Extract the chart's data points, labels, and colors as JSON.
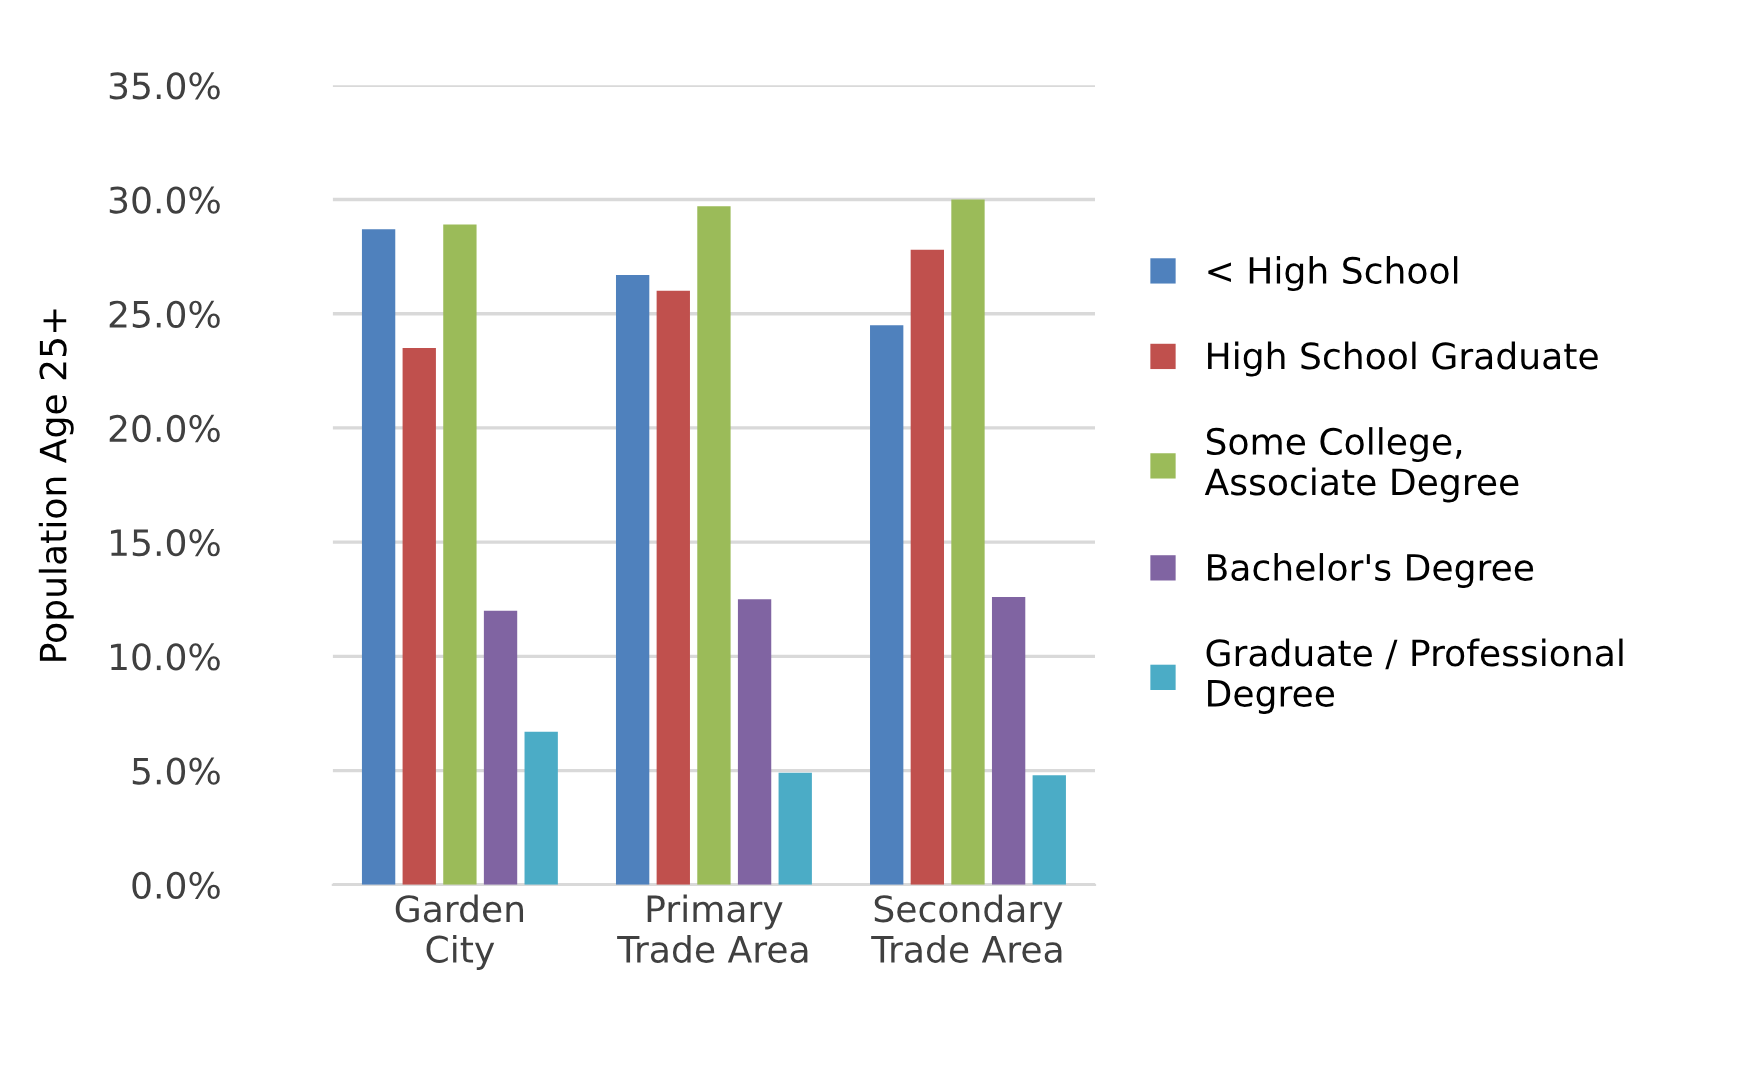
{
  "chart_data": {
    "type": "bar",
    "ylabel": "Population Age 25+",
    "categories": [
      "Garden\nCity",
      "Primary\nTrade Area",
      "Secondary\nTrade Area"
    ],
    "series": [
      {
        "name": "< High School",
        "color": "#4f81bd",
        "values": [
          28.7,
          26.7,
          24.5
        ]
      },
      {
        "name": "High School Graduate",
        "color": "#c0504d",
        "values": [
          23.5,
          26.0,
          27.8
        ]
      },
      {
        "name": "Some College,\nAssociate Degree",
        "color": "#9bbb59",
        "values": [
          28.9,
          29.7,
          30.0
        ]
      },
      {
        "name": "Bachelor's Degree",
        "color": "#8064a2",
        "values": [
          12.0,
          12.5,
          12.6
        ]
      },
      {
        "name": "Graduate / Professional\nDegree",
        "color": "#4bacc6",
        "values": [
          6.7,
          4.9,
          4.8
        ]
      }
    ],
    "ylim": [
      0,
      35
    ],
    "yticks": [
      {
        "value": 0,
        "label": "0.0%"
      },
      {
        "value": 5,
        "label": "5.0%"
      },
      {
        "value": 10,
        "label": "10.0%"
      },
      {
        "value": 15,
        "label": "15.0%"
      },
      {
        "value": 20,
        "label": "20.0%"
      },
      {
        "value": 25,
        "label": "25.0%"
      },
      {
        "value": 30,
        "label": "30.0%"
      },
      {
        "value": 35,
        "label": "35.0%"
      }
    ],
    "grid": "y",
    "legend": "right"
  }
}
